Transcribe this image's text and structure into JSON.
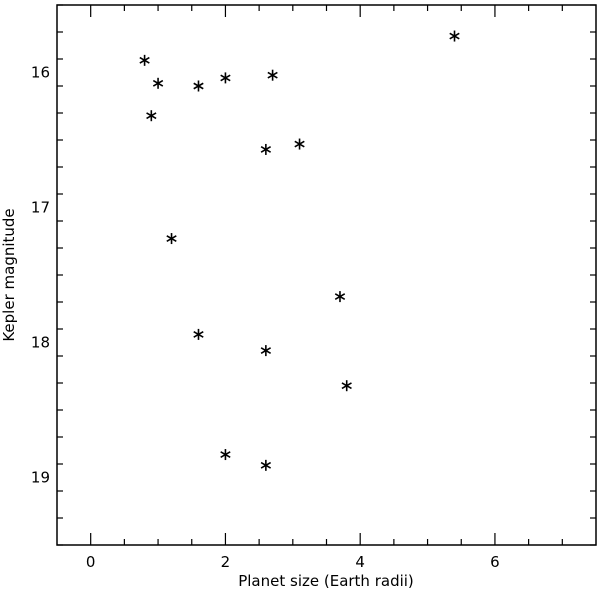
{
  "chart_data": {
    "type": "scatter",
    "title": "",
    "xlabel": "Planet size (Earth radii)",
    "ylabel": "Kepler magnitude",
    "xlim": [
      -0.5,
      7.5
    ],
    "ylim": [
      15.5,
      19.5
    ],
    "y_inverted": true,
    "x_ticks": [
      0,
      2,
      4,
      6
    ],
    "x_tick_labels": [
      "0",
      "2",
      "4",
      "6"
    ],
    "y_ticks": [
      16,
      17,
      18,
      19
    ],
    "y_tick_labels": [
      "16",
      "17",
      "18",
      "19"
    ],
    "marker": "asterisk",
    "marker_color": "#000000",
    "grid": false,
    "points": [
      {
        "x": 0.8,
        "y": 15.91
      },
      {
        "x": 1.0,
        "y": 16.08
      },
      {
        "x": 0.9,
        "y": 16.32
      },
      {
        "x": 1.6,
        "y": 16.1
      },
      {
        "x": 2.0,
        "y": 16.04
      },
      {
        "x": 2.7,
        "y": 16.02
      },
      {
        "x": 5.4,
        "y": 15.73
      },
      {
        "x": 2.6,
        "y": 16.57
      },
      {
        "x": 3.1,
        "y": 16.53
      },
      {
        "x": 1.2,
        "y": 17.23
      },
      {
        "x": 3.7,
        "y": 17.66
      },
      {
        "x": 1.6,
        "y": 17.94
      },
      {
        "x": 2.6,
        "y": 18.06
      },
      {
        "x": 3.8,
        "y": 18.32
      },
      {
        "x": 2.0,
        "y": 18.83
      },
      {
        "x": 2.6,
        "y": 18.91
      }
    ]
  }
}
